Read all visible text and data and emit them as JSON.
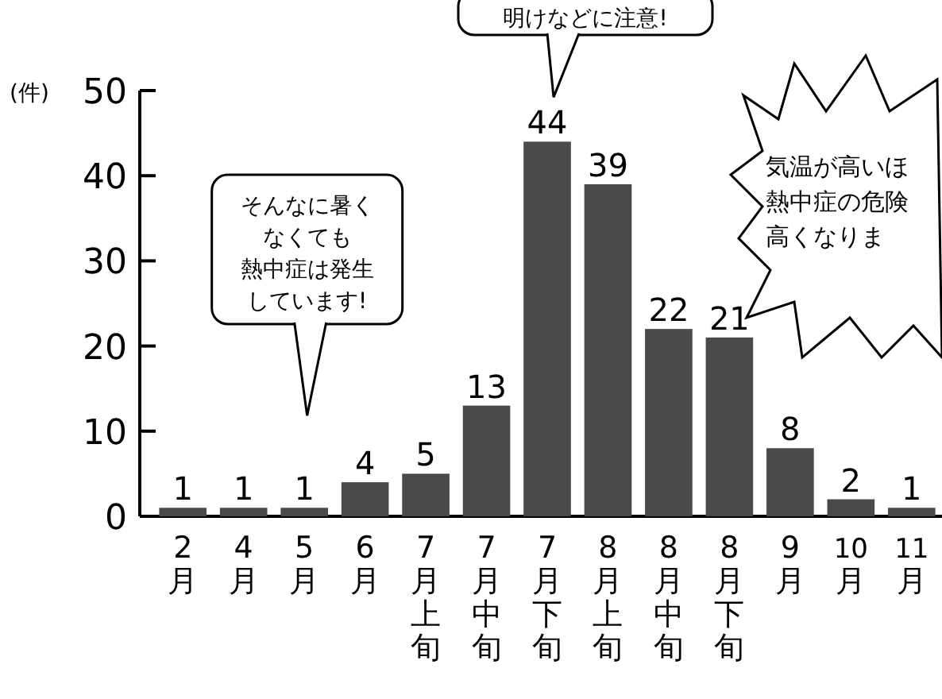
{
  "chart_data": {
    "type": "bar",
    "ylabel": "(件)",
    "categories": [
      "2月",
      "4月",
      "5月",
      "6月",
      "7月上旬",
      "7月中旬",
      "7月下旬",
      "8月上旬",
      "8月中旬",
      "8月下旬",
      "9月",
      "10月",
      "11月"
    ],
    "values": [
      1,
      1,
      1,
      4,
      5,
      13,
      44,
      39,
      22,
      21,
      8,
      2,
      1
    ],
    "color": "#4a4a4a",
    "ylim": [
      0,
      50
    ],
    "yticks": [
      0,
      10,
      20,
      30,
      40,
      50
    ],
    "data_labels": true,
    "grid": false,
    "annotations": [
      "明けなどに注意!",
      "そんなに暑くなくても熱中症は発生しています!",
      "気温が高いほ熱中症の危険高くなりま"
    ]
  }
}
